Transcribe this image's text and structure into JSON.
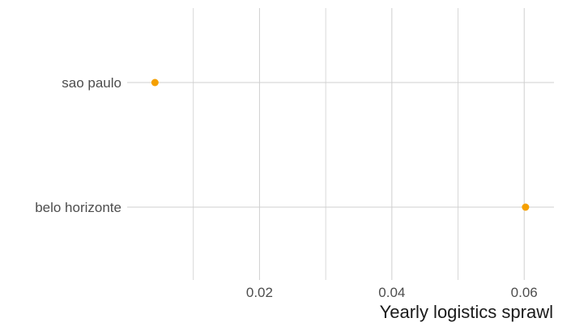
{
  "chart_data": {
    "type": "scatter",
    "title": "",
    "xlabel": "Yearly logistics sprawl",
    "ylabel": "",
    "categories": [
      "sao paulo",
      "belo horizonte"
    ],
    "series": [
      {
        "values": [
          0.0042,
          0.0602
        ],
        "color": "#f5a000"
      }
    ],
    "xlim": [
      0.0,
      0.0645
    ],
    "xticks": [
      0.02,
      0.04,
      0.06
    ],
    "xtick_labels": [
      "0.02",
      "0.04",
      "0.06"
    ],
    "grid": true,
    "legend": "none",
    "grid_color": "#cfcfcf"
  }
}
